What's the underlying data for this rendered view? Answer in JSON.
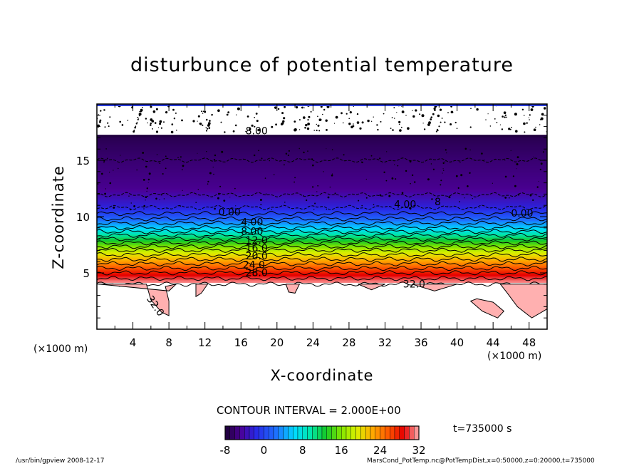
{
  "chart_data": {
    "type": "heatmap",
    "title": "disturbunce of potential temperature",
    "xlabel": "X-coordinate",
    "ylabel": "Z-coordinate",
    "x_unit": "(×1000 m)",
    "y_unit": "(×1000 m)",
    "xlim": [
      0,
      50
    ],
    "ylim": [
      0,
      20
    ],
    "x_ticks": [
      "4",
      "8",
      "12",
      "16",
      "20",
      "24",
      "28",
      "32",
      "36",
      "40",
      "44",
      "48"
    ],
    "y_ticks": [
      "5",
      "10",
      "15"
    ],
    "contour_interval_label": "CONTOUR INTERVAL = 2.000E+00",
    "contour_labels": [
      "8.00",
      "4.00",
      "0.00",
      "0.00",
      "4.00",
      "8.00",
      "12.0",
      "16.0",
      "20.0",
      "24.0",
      "28.0",
      "32.0",
      "32.0",
      "8"
    ],
    "color_range": [
      -8,
      32
    ],
    "colorbar_ticks": [
      "-8",
      "0",
      "8",
      "16",
      "24",
      "32"
    ],
    "profile": [
      {
        "z": 0.0,
        "value": 34
      },
      {
        "z": 4.0,
        "value": 32
      },
      {
        "z": 5.0,
        "value": 28
      },
      {
        "z": 6.0,
        "value": 23
      },
      {
        "z": 7.0,
        "value": 18
      },
      {
        "z": 8.0,
        "value": 12
      },
      {
        "z": 9.0,
        "value": 6
      },
      {
        "z": 10.0,
        "value": 1
      },
      {
        "z": 10.8,
        "value": -2
      },
      {
        "z": 12.5,
        "value": -5
      },
      {
        "z": 15.0,
        "value": -6
      },
      {
        "z": 17.0,
        "value": -7
      },
      {
        "z": 17.3,
        "value": -8
      },
      {
        "z": 17.4,
        "value": null
      }
    ],
    "time_label": "t=735000 s"
  },
  "footer": {
    "left": "/usr/bin/gpview   2008-12-17",
    "right": "MarsCond_PotTemp.nc@PotTempDist,x=0:50000,z=0:20000,t=735000"
  },
  "colors": {
    "low": "#1a0033",
    "high": "#ffb0b0",
    "frame": "#000000"
  }
}
